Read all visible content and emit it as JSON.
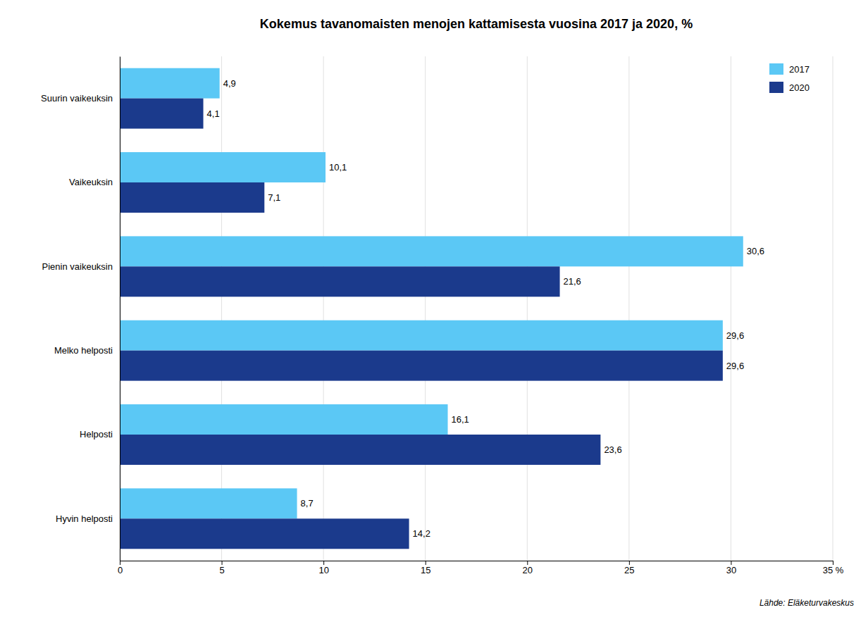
{
  "chart_data": {
    "type": "bar",
    "orientation": "horizontal",
    "title": "Kokemus tavanomaisten menojen kattamisesta vuosina 2017 ja 2020, %",
    "categories": [
      "Suurin vaikeuksin",
      "Vaikeuksin",
      "Pienin vaikeuksin",
      "Melko helposti",
      "Helposti",
      "Hyvin helposti"
    ],
    "series": [
      {
        "name": "2017",
        "color": "#5BC8F5",
        "values": [
          4.9,
          10.1,
          30.6,
          29.6,
          16.1,
          8.7
        ],
        "value_labels": [
          "4,9",
          "10,1",
          "30,6",
          "29,6",
          "16,1",
          "8,7"
        ]
      },
      {
        "name": "2020",
        "color": "#1B3A8C",
        "values": [
          4.1,
          7.1,
          21.6,
          29.6,
          23.6,
          14.2
        ],
        "value_labels": [
          "4,1",
          "7,1",
          "21,6",
          "29,6",
          "23,6",
          "14,2"
        ]
      }
    ],
    "xlim": [
      0,
      35
    ],
    "xticks": [
      0,
      5,
      10,
      15,
      20,
      25,
      30,
      {
        "value": 35,
        "label": "35 %"
      }
    ],
    "grid": true,
    "legend": "upper right",
    "data_labels": true,
    "source": "Lähde: Eläketurvakeskus"
  }
}
